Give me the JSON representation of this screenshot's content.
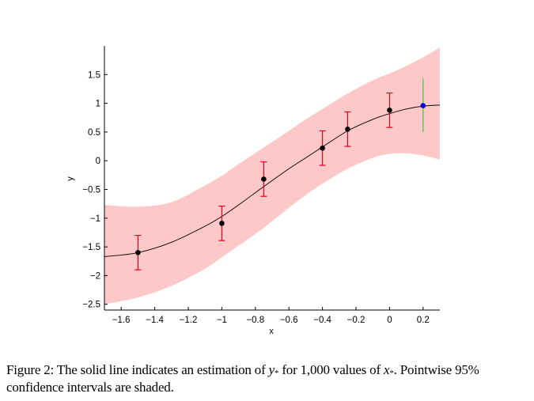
{
  "chart_data": {
    "type": "line",
    "title": "",
    "xlabel": "x",
    "ylabel": "y",
    "xlim": [
      -1.7,
      0.3
    ],
    "ylim": [
      -2.6,
      2.0
    ],
    "grid": false,
    "xticks": [
      -1.6,
      -1.4,
      -1.2,
      -1,
      -0.8,
      -0.6,
      -0.4,
      -0.2,
      0,
      0.2
    ],
    "xtick_labels": [
      "−1.6",
      "−1.4",
      "−1.2",
      "−1",
      "−0.8",
      "−0.6",
      "−0.4",
      "−0.2",
      "0",
      "0.2"
    ],
    "yticks": [
      1.5,
      1,
      0.5,
      0,
      -0.5,
      -1,
      -1.5,
      -2,
      -2.5
    ],
    "ytick_labels": [
      "1.5",
      "1",
      "0.5",
      "0",
      "−0.5",
      "−1",
      "−1.5",
      "−2",
      "−2.5"
    ],
    "estimate_curve": {
      "x": [
        -1.7,
        -1.5,
        -1.3,
        -1.1,
        -1.0,
        -0.9,
        -0.75,
        -0.6,
        -0.5,
        -0.4,
        -0.25,
        -0.1,
        0,
        0.1,
        0.2,
        0.3
      ],
      "y": [
        -1.67,
        -1.6,
        -1.42,
        -1.14,
        -0.97,
        -0.77,
        -0.45,
        -0.14,
        0.05,
        0.24,
        0.52,
        0.72,
        0.82,
        0.9,
        0.95,
        0.97
      ]
    },
    "confidence_band_95": {
      "x": [
        -1.7,
        -1.5,
        -1.3,
        -1.1,
        -1.0,
        -0.9,
        -0.75,
        -0.6,
        -0.5,
        -0.4,
        -0.25,
        -0.1,
        0,
        0.1,
        0.2,
        0.3
      ],
      "lower": [
        -2.5,
        -2.38,
        -2.18,
        -1.88,
        -1.68,
        -1.48,
        -1.17,
        -0.82,
        -0.6,
        -0.4,
        -0.14,
        0.05,
        0.12,
        0.13,
        0.09,
        0.02
      ],
      "upper": [
        -0.77,
        -0.8,
        -0.72,
        -0.43,
        -0.26,
        -0.06,
        0.23,
        0.52,
        0.72,
        0.9,
        1.17,
        1.4,
        1.52,
        1.65,
        1.8,
        1.97
      ]
    },
    "training_points": [
      {
        "x": -1.5,
        "y": -1.6,
        "err": 0.3
      },
      {
        "x": -1.0,
        "y": -1.09,
        "err": 0.3
      },
      {
        "x": -0.75,
        "y": -0.32,
        "err": 0.3
      },
      {
        "x": -0.4,
        "y": 0.22,
        "err": 0.3
      },
      {
        "x": -0.25,
        "y": 0.55,
        "err": 0.3
      },
      {
        "x": 0,
        "y": 0.88,
        "err": 0.3
      }
    ],
    "test_point": {
      "x": 0.2,
      "y": 0.96,
      "lower": 0.5,
      "upper": 1.43
    },
    "colors": {
      "band": "#ffc8c8",
      "curve": "#000000",
      "points": "#000000",
      "errorbars": "#e00020",
      "test_point": "#0000e0",
      "test_interval": "#30d030"
    }
  },
  "caption": {
    "prefix": "Figure 2: The solid line indicates an estimation of ",
    "var1": "y",
    "sub1": "*",
    "middle": " for 1,000 values of ",
    "var2": "x",
    "sub2": "*",
    "suffix": ". Pointwise 95% confidence intervals are shaded."
  }
}
